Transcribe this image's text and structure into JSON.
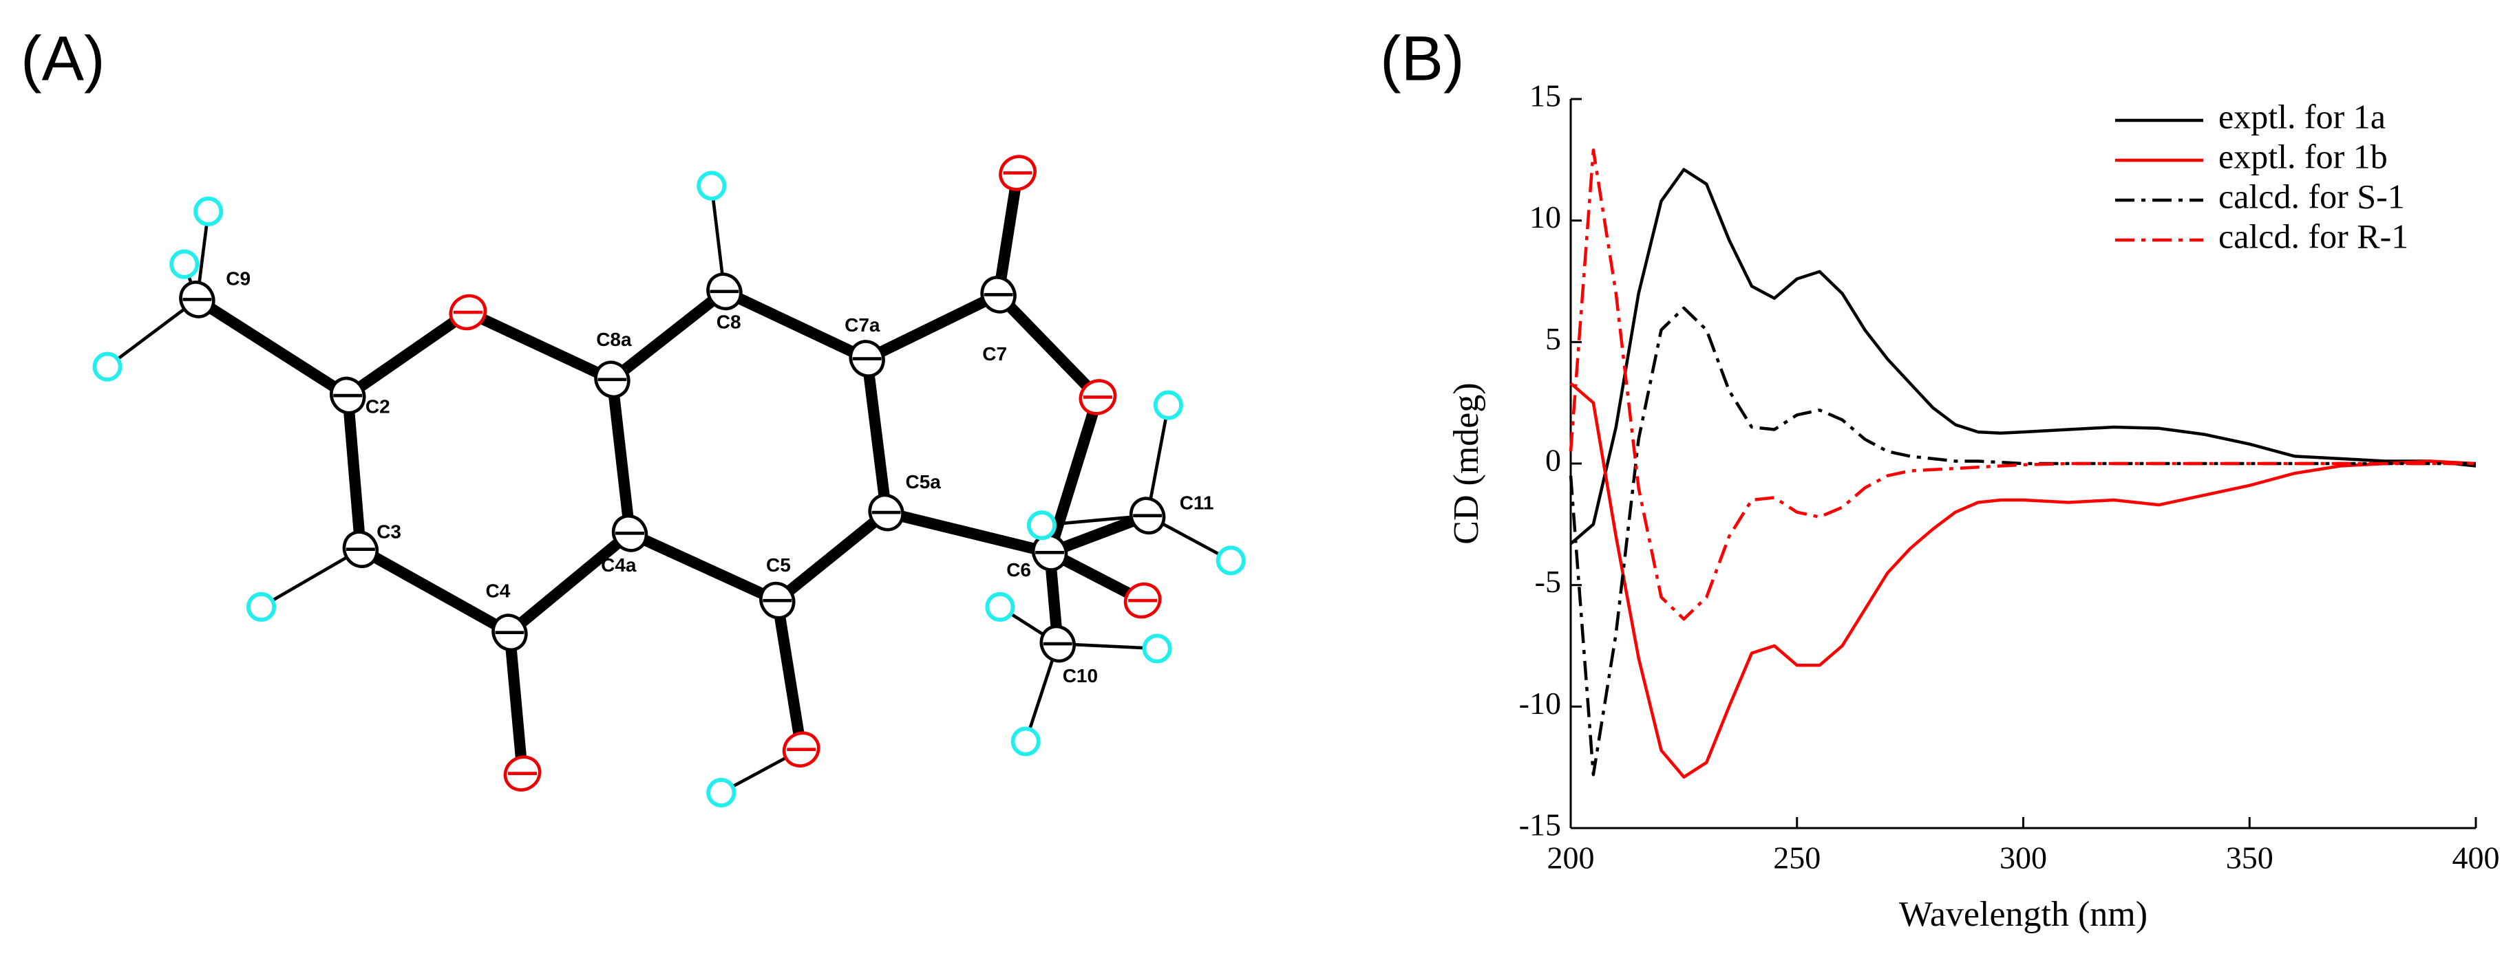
{
  "diagram": {
    "label": "(A)",
    "atoms": [
      "C9",
      "C2",
      "C3",
      "C4",
      "C4a",
      "C8a",
      "C8",
      "C7a",
      "C7",
      "C5a",
      "C5",
      "C6",
      "C11",
      "C10"
    ]
  },
  "chart_data": {
    "type": "line",
    "label": "(B)",
    "x_label": "Wavelength (nm)",
    "y_label": "CD (mdeg)",
    "xlim": [
      200,
      400
    ],
    "ylim": [
      -15,
      15
    ],
    "xticks": [
      200,
      250,
      300,
      350,
      400
    ],
    "yticks": [
      -15,
      -10,
      -5,
      0,
      5,
      10,
      15
    ],
    "legend": "upper right",
    "x": [
      200,
      205,
      210,
      215,
      220,
      225,
      230,
      235,
      240,
      245,
      250,
      255,
      260,
      265,
      270,
      275,
      280,
      285,
      290,
      295,
      300,
      310,
      320,
      330,
      340,
      350,
      360,
      370,
      380,
      390,
      400
    ],
    "series": [
      {
        "name": "exptl. for 1a",
        "color": "#000000",
        "style": "solid",
        "values": [
          -3.3,
          -2.5,
          1.5,
          7,
          10.8,
          12.1,
          11.5,
          9.2,
          7.3,
          6.8,
          7.6,
          7.9,
          7.0,
          5.5,
          4.3,
          3.3,
          2.3,
          1.6,
          1.3,
          1.25,
          1.3,
          1.4,
          1.5,
          1.45,
          1.2,
          0.8,
          0.3,
          0.2,
          0.1,
          0.1,
          -0.1
        ]
      },
      {
        "name": "exptl. for 1b",
        "color": "#ff0000",
        "style": "solid",
        "values": [
          3.3,
          2.5,
          -3,
          -8,
          -11.8,
          -12.9,
          -12.3,
          -10,
          -7.8,
          -7.5,
          -8.3,
          -8.3,
          -7.5,
          -6,
          -4.5,
          -3.5,
          -2.7,
          -2,
          -1.6,
          -1.5,
          -1.5,
          -1.6,
          -1.5,
          -1.7,
          -1.3,
          -0.9,
          -0.4,
          -0.1,
          0,
          0.1,
          0
        ]
      },
      {
        "name": "calcd. for S-1",
        "color": "#000000",
        "style": "dashdot",
        "values": [
          -0.5,
          -12.8,
          -7,
          1,
          5.5,
          6.4,
          5.5,
          3,
          1.5,
          1.4,
          2,
          2.2,
          1.8,
          1,
          0.5,
          0.3,
          0.2,
          0.1,
          0.1,
          0.05,
          0,
          0,
          0,
          0,
          0,
          0,
          0,
          0,
          0,
          0,
          0
        ]
      },
      {
        "name": "calcd. for R-1",
        "color": "#ff0000",
        "style": "dashdot",
        "values": [
          0.5,
          12.9,
          7,
          -1,
          -5.5,
          -6.4,
          -5.5,
          -3,
          -1.5,
          -1.4,
          -2,
          -2.2,
          -1.8,
          -1,
          -0.5,
          -0.3,
          -0.25,
          -0.2,
          -0.15,
          -0.1,
          -0.05,
          0,
          0,
          0,
          0,
          0,
          0,
          0,
          0,
          0,
          0
        ]
      }
    ]
  }
}
